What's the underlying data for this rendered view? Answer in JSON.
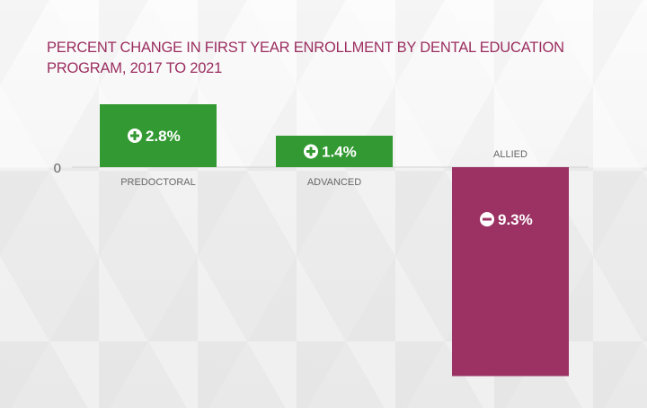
{
  "chart_data": {
    "type": "bar",
    "title": "PERCENT CHANGE IN FIRST YEAR ENROLLMENT BY DENTAL EDUCATION PROGRAM, 2017 TO 2021",
    "categories": [
      "PREDOCTORAL",
      "ADVANCED",
      "ALLIED"
    ],
    "values": [
      2.8,
      1.4,
      -9.3
    ],
    "data_labels": [
      "2.8%",
      "1.4%",
      "9.3%"
    ],
    "label_signs": [
      "plus",
      "plus",
      "minus"
    ],
    "y_tick_labels": [
      "0"
    ],
    "ylim": [
      -9.3,
      2.8
    ],
    "grid": false,
    "legend": "none",
    "colors": {
      "positive": "#339933",
      "negative": "#9b3263",
      "title": "#9b2d5f",
      "axis_text": "#666666"
    }
  }
}
